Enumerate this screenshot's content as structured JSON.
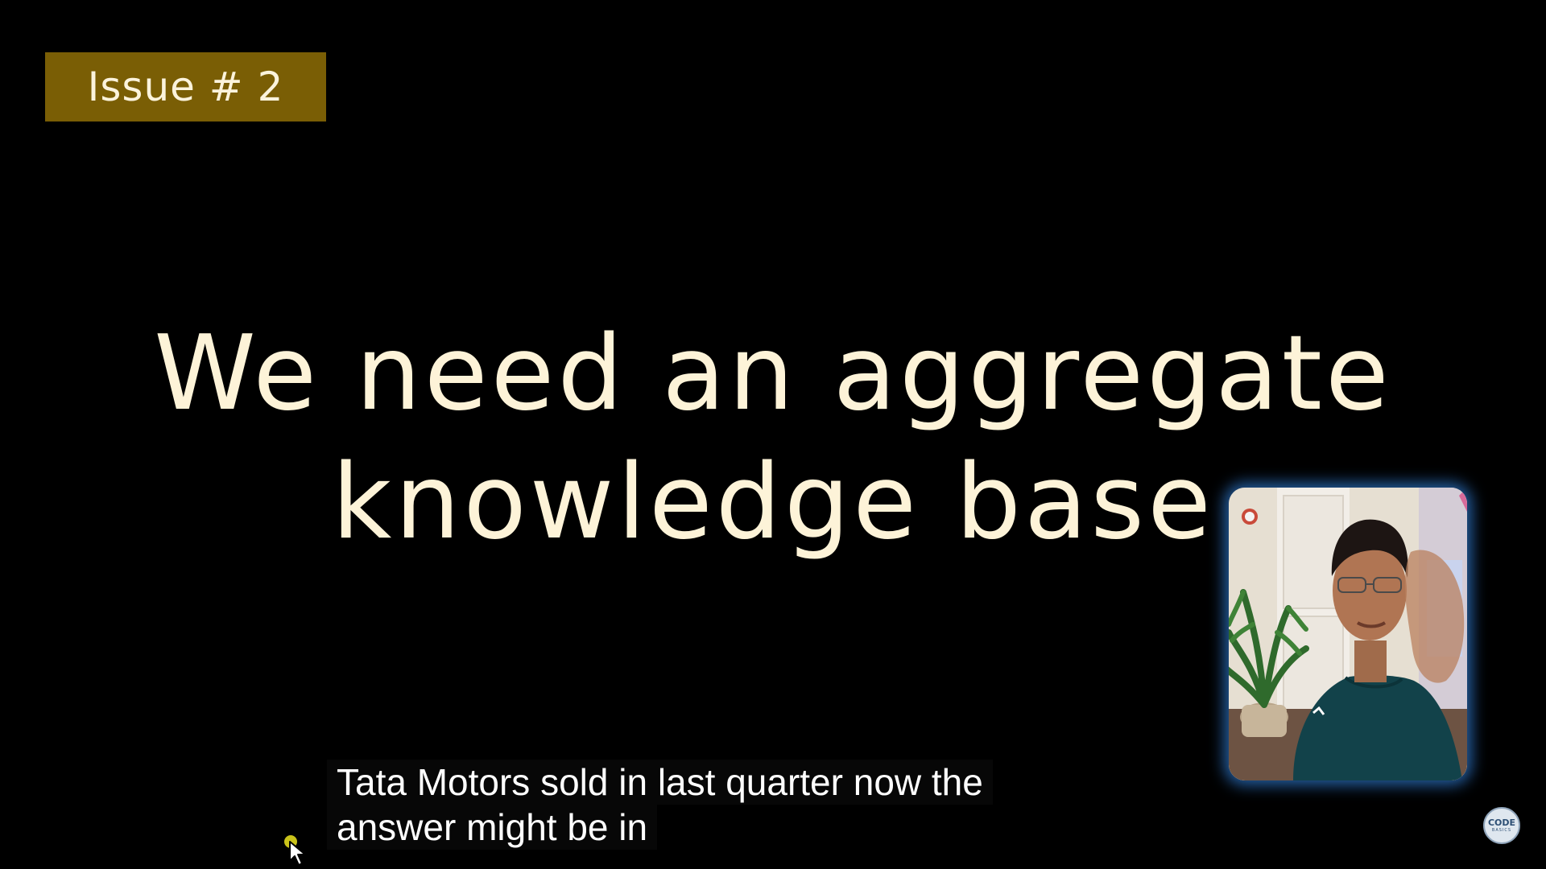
{
  "slide": {
    "badge_label": "Issue # 2",
    "headline_lines": [
      "We need an aggregate",
      "knowledge base"
    ],
    "colors": {
      "background": "#000000",
      "badge_background": "#7a5e05",
      "headline_text": "#fdf3d8",
      "webcam_glow": "#307ed6"
    }
  },
  "captions": {
    "lines": [
      "Tata Motors sold in last quarter now the",
      "answer might be in"
    ]
  },
  "webcam": {
    "subject": "presenter-webcam-video"
  },
  "channel_logo": {
    "line1": "CODE",
    "line2": "BASICS"
  },
  "cursor": {
    "icon": "arrow-pointer-icon"
  }
}
